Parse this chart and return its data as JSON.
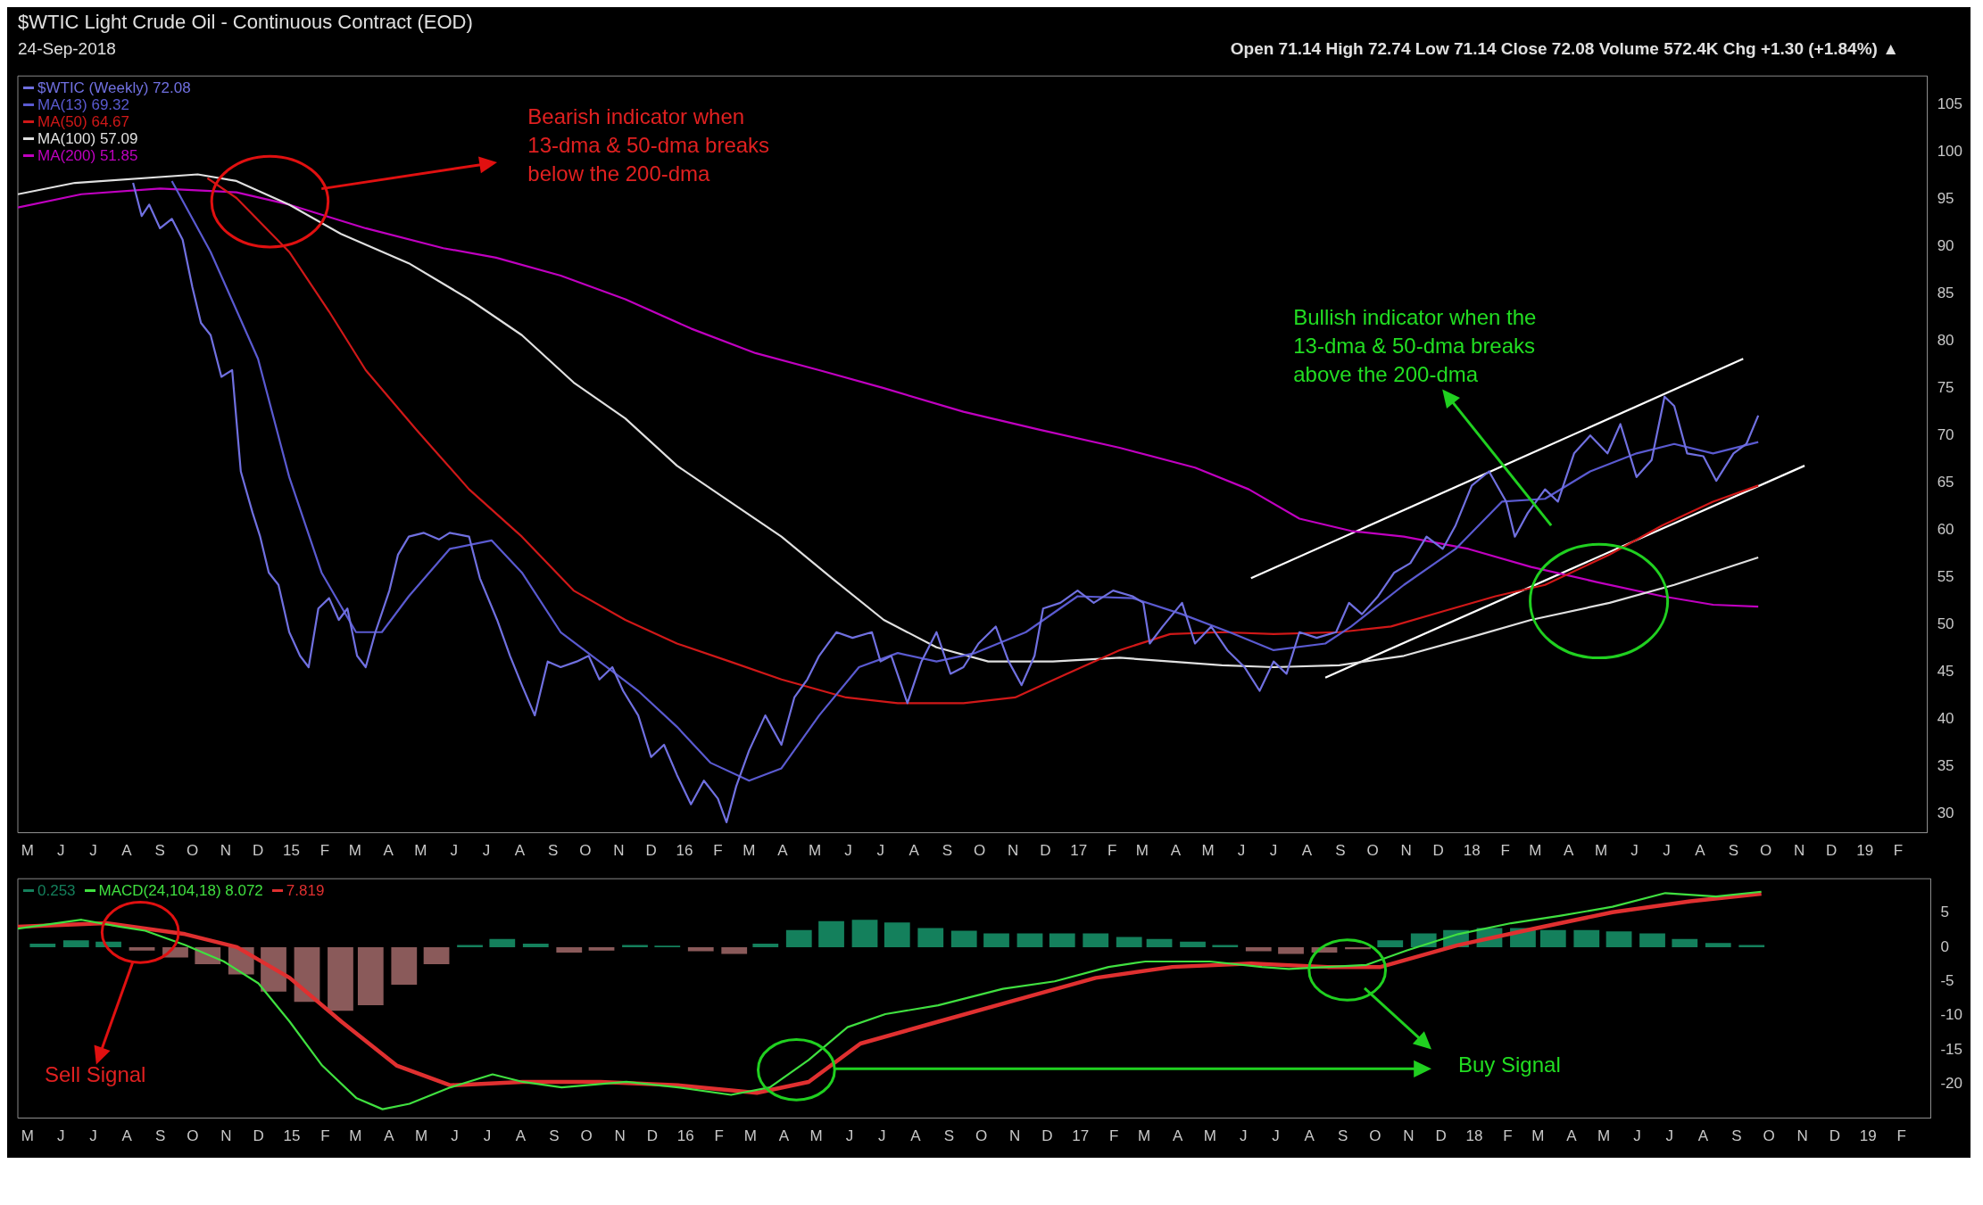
{
  "chart_data": [
    {
      "type": "line",
      "title": "$WTIC Light Crude Oil - Continuous Contract (EOD)",
      "subtitle": "24-Sep-2018",
      "annotations": [
        "Open 71.14 High 72.74 Low 71.14 Close 72.08 Volume 572.4K Chg +1.30 (+1.84%) ▲",
        "Bearish indicator when 13-dma & 50-dma breaks below the 200-dma",
        "Bullish indicator when the 13-dma & 50-dma breaks above the 200-dma"
      ],
      "xlim": [
        "2014-04-22",
        "2019-02-28"
      ],
      "xticks": [
        {
          "value": "2014-05-01",
          "label": "M"
        },
        {
          "value": "2014-06-01",
          "label": "J"
        },
        {
          "value": "2014-07-01",
          "label": "J"
        },
        {
          "value": "2014-08-01",
          "label": "A"
        },
        {
          "value": "2014-09-01",
          "label": "S"
        },
        {
          "value": "2014-10-01",
          "label": "O"
        },
        {
          "value": "2014-11-01",
          "label": "N"
        },
        {
          "value": "2014-12-01",
          "label": "D"
        },
        {
          "value": "2015-01-01",
          "label": "15"
        },
        {
          "value": "2015-02-01",
          "label": "F"
        },
        {
          "value": "2015-03-01",
          "label": "M"
        },
        {
          "value": "2015-04-01",
          "label": "A"
        },
        {
          "value": "2015-05-01",
          "label": "M"
        },
        {
          "value": "2015-06-01",
          "label": "J"
        },
        {
          "value": "2015-07-01",
          "label": "J"
        },
        {
          "value": "2015-08-01",
          "label": "A"
        },
        {
          "value": "2015-09-01",
          "label": "S"
        },
        {
          "value": "2015-10-01",
          "label": "O"
        },
        {
          "value": "2015-11-01",
          "label": "N"
        },
        {
          "value": "2015-12-01",
          "label": "D"
        },
        {
          "value": "2016-01-01",
          "label": "16"
        },
        {
          "value": "2016-02-01",
          "label": "F"
        },
        {
          "value": "2016-03-01",
          "label": "M"
        },
        {
          "value": "2016-04-01",
          "label": "A"
        },
        {
          "value": "2016-05-01",
          "label": "M"
        },
        {
          "value": "2016-06-01",
          "label": "J"
        },
        {
          "value": "2016-07-01",
          "label": "J"
        },
        {
          "value": "2016-08-01",
          "label": "A"
        },
        {
          "value": "2016-09-01",
          "label": "S"
        },
        {
          "value": "2016-10-01",
          "label": "O"
        },
        {
          "value": "2016-11-01",
          "label": "N"
        },
        {
          "value": "2016-12-01",
          "label": "D"
        },
        {
          "value": "2017-01-01",
          "label": "17"
        },
        {
          "value": "2017-02-01",
          "label": "F"
        },
        {
          "value": "2017-03-01",
          "label": "M"
        },
        {
          "value": "2017-04-01",
          "label": "A"
        },
        {
          "value": "2017-05-01",
          "label": "M"
        },
        {
          "value": "2017-06-01",
          "label": "J"
        },
        {
          "value": "2017-07-01",
          "label": "J"
        },
        {
          "value": "2017-08-01",
          "label": "A"
        },
        {
          "value": "2017-09-01",
          "label": "S"
        },
        {
          "value": "2017-10-01",
          "label": "O"
        },
        {
          "value": "2017-11-01",
          "label": "N"
        },
        {
          "value": "2017-12-01",
          "label": "D"
        },
        {
          "value": "2018-01-01",
          "label": "18"
        },
        {
          "value": "2018-02-01",
          "label": "F"
        },
        {
          "value": "2018-03-01",
          "label": "M"
        },
        {
          "value": "2018-04-01",
          "label": "A"
        },
        {
          "value": "2018-05-01",
          "label": "M"
        },
        {
          "value": "2018-06-01",
          "label": "J"
        },
        {
          "value": "2018-07-01",
          "label": "J"
        },
        {
          "value": "2018-08-01",
          "label": "A"
        },
        {
          "value": "2018-09-01",
          "label": "S"
        },
        {
          "value": "2018-10-01",
          "label": "O"
        },
        {
          "value": "2018-11-01",
          "label": "N"
        },
        {
          "value": "2018-12-01",
          "label": "D"
        },
        {
          "value": "2019-01-01",
          "label": "19"
        },
        {
          "value": "2019-02-01",
          "label": "F"
        }
      ],
      "ylim": [
        28,
        108
      ],
      "yticks": [
        30,
        35,
        40,
        45,
        50,
        55,
        60,
        65,
        70,
        75,
        80,
        85,
        90,
        95,
        100,
        105
      ],
      "legend": "top left",
      "series": [
        {
          "name": "$WTIC (Weekly) 72.08",
          "color": "#7070e0",
          "x": [
            "2014-08-07",
            "2014-08-15",
            "2014-08-22",
            "2014-09-01",
            "2014-09-12",
            "2014-09-22",
            "2014-10-01",
            "2014-10-09",
            "2014-10-18",
            "2014-10-28",
            "2014-11-07",
            "2014-11-15",
            "2014-11-26",
            "2014-12-03",
            "2014-12-11",
            "2014-12-20",
            "2014-12-30",
            "2015-01-09",
            "2015-01-17",
            "2015-01-26",
            "2015-02-05",
            "2015-02-14",
            "2015-02-22",
            "2015-03-03",
            "2015-03-11",
            "2015-03-20",
            "2015-04-02",
            "2015-04-10",
            "2015-04-20",
            "2015-05-04",
            "2015-05-18",
            "2015-05-28",
            "2015-06-15",
            "2015-06-25",
            "2015-07-11",
            "2015-07-23",
            "2015-08-03",
            "2015-08-15",
            "2015-08-27",
            "2015-09-08",
            "2015-09-23",
            "2015-10-04",
            "2015-10-14",
            "2015-10-26",
            "2015-11-05",
            "2015-11-19",
            "2015-12-01",
            "2015-12-13",
            "2015-12-25",
            "2016-01-07",
            "2016-01-19",
            "2016-02-01",
            "2016-02-09",
            "2016-02-18",
            "2016-03-01",
            "2016-03-16",
            "2016-03-31",
            "2016-04-12",
            "2016-04-24",
            "2016-05-05",
            "2016-05-21",
            "2016-06-05",
            "2016-06-23",
            "2016-07-01",
            "2016-07-11",
            "2016-07-26",
            "2016-08-08",
            "2016-08-22",
            "2016-09-04",
            "2016-09-16",
            "2016-09-30",
            "2016-10-16",
            "2016-10-28",
            "2016-11-09",
            "2016-11-21",
            "2016-11-29",
            "2016-12-15",
            "2016-12-31",
            "2017-01-15",
            "2017-02-02",
            "2017-02-20",
            "2017-03-02",
            "2017-03-08",
            "2017-03-20",
            "2017-04-07",
            "2017-04-19",
            "2017-05-04",
            "2017-05-19",
            "2017-06-04",
            "2017-06-18",
            "2017-07-01",
            "2017-07-13",
            "2017-07-25",
            "2017-08-10",
            "2017-08-28",
            "2017-09-09",
            "2017-09-21",
            "2017-10-06",
            "2017-10-21",
            "2017-11-05",
            "2017-11-20",
            "2017-12-05",
            "2017-12-17",
            "2018-01-01",
            "2018-01-17",
            "2018-02-02",
            "2018-02-10",
            "2018-02-22",
            "2018-03-10",
            "2018-03-22",
            "2018-04-06",
            "2018-04-21",
            "2018-05-07",
            "2018-05-19",
            "2018-06-03",
            "2018-06-17",
            "2018-06-29",
            "2018-07-08",
            "2018-07-20",
            "2018-08-04",
            "2018-08-16",
            "2018-09-01",
            "2018-09-13",
            "2018-09-24"
          ],
          "values": [
            96.7,
            93.2,
            94.4,
            91.9,
            92.9,
            90.7,
            85.7,
            81.9,
            80.6,
            76.2,
            76.9,
            66.2,
            61.8,
            59.3,
            55.5,
            54.2,
            49.2,
            46.7,
            45.5,
            51.7,
            52.8,
            50.5,
            51.7,
            46.7,
            45.5,
            49.2,
            53.6,
            57.4,
            59.3,
            59.7,
            59.0,
            59.7,
            59.3,
            54.9,
            50.5,
            46.7,
            43.6,
            40.4,
            46.1,
            45.5,
            46.1,
            46.7,
            44.2,
            45.5,
            43.0,
            40.4,
            36.0,
            37.3,
            34.1,
            31.0,
            33.5,
            31.6,
            29.1,
            32.9,
            36.7,
            40.4,
            37.3,
            42.3,
            44.2,
            46.7,
            49.2,
            48.6,
            49.2,
            46.1,
            46.7,
            41.7,
            46.1,
            49.2,
            44.8,
            45.5,
            48.0,
            49.8,
            46.1,
            43.6,
            46.7,
            51.7,
            52.3,
            53.6,
            52.3,
            53.6,
            53.0,
            52.3,
            48.0,
            49.8,
            52.3,
            48.0,
            49.8,
            47.3,
            45.5,
            43.0,
            46.1,
            44.8,
            49.2,
            48.6,
            49.2,
            52.3,
            51.1,
            53.0,
            55.5,
            56.5,
            59.3,
            58.0,
            60.5,
            64.7,
            66.2,
            63.0,
            59.3,
            61.8,
            64.3,
            63.0,
            68.1,
            70.0,
            68.1,
            71.2,
            65.6,
            67.4,
            74.1,
            73.1,
            68.1,
            67.8,
            65.2,
            68.1,
            69.1,
            72.1
          ]
        },
        {
          "name": "MA(13) 69.32",
          "color": "#5a5ad0",
          "x": [
            "2014-09-12",
            "2014-10-18",
            "2014-12-01",
            "2014-12-30",
            "2015-01-29",
            "2015-03-02",
            "2015-03-26",
            "2015-04-20",
            "2015-05-28",
            "2015-07-06",
            "2015-08-03",
            "2015-09-08",
            "2015-10-14",
            "2015-11-19",
            "2015-12-25",
            "2016-01-25",
            "2016-03-01",
            "2016-03-31",
            "2016-05-05",
            "2016-06-11",
            "2016-07-17",
            "2016-08-22",
            "2016-09-27",
            "2016-11-13",
            "2016-12-31",
            "2017-02-20",
            "2017-04-07",
            "2017-05-21",
            "2017-07-01",
            "2017-08-18",
            "2017-09-11",
            "2017-10-30",
            "2017-12-17",
            "2018-01-29",
            "2018-03-10",
            "2018-04-21",
            "2018-06-03",
            "2018-07-08",
            "2018-08-13",
            "2018-09-24"
          ],
          "values": [
            96.9,
            89.4,
            78.1,
            65.6,
            55.5,
            49.2,
            49.2,
            53.0,
            58.0,
            58.9,
            55.5,
            49.2,
            46.1,
            43.0,
            39.2,
            35.4,
            33.5,
            34.8,
            40.4,
            45.5,
            47.0,
            46.1,
            47.0,
            49.2,
            53.0,
            52.8,
            51.1,
            49.2,
            47.3,
            48.0,
            49.8,
            54.2,
            58.0,
            63.0,
            63.3,
            66.2,
            68.1,
            69.1,
            68.1,
            69.3
          ]
        },
        {
          "name": "MA(50) 64.67",
          "color": "#d01818",
          "x": [
            "2014-10-15",
            "2014-11-11",
            "2014-12-30",
            "2015-02-05",
            "2015-03-11",
            "2015-04-27",
            "2015-06-15",
            "2015-08-03",
            "2015-09-20",
            "2015-11-07",
            "2015-12-25",
            "2016-02-12",
            "2016-03-31",
            "2016-05-30",
            "2016-07-17",
            "2016-09-16",
            "2016-11-03",
            "2016-12-21",
            "2017-02-08",
            "2017-03-27",
            "2017-05-14",
            "2017-07-01",
            "2017-08-31",
            "2017-10-18",
            "2017-12-05",
            "2018-01-23",
            "2018-03-10",
            "2018-05-09",
            "2018-06-27",
            "2018-08-13",
            "2018-09-24"
          ],
          "values": [
            97.2,
            95.1,
            89.4,
            83.1,
            76.9,
            70.6,
            64.3,
            59.3,
            53.6,
            50.5,
            48.0,
            46.1,
            44.2,
            42.3,
            41.7,
            41.7,
            42.3,
            44.8,
            47.3,
            49.0,
            49.2,
            49.0,
            49.2,
            49.8,
            51.4,
            53.0,
            54.2,
            57.4,
            60.5,
            63.0,
            64.7
          ]
        },
        {
          "name": "MA(100) 57.09",
          "color": "#e0e0e0",
          "x": [
            "2014-04-22",
            "2014-06-14",
            "2014-10-06",
            "2014-11-11",
            "2014-12-30",
            "2015-02-16",
            "2015-04-20",
            "2015-06-15",
            "2015-08-03",
            "2015-09-20",
            "2015-11-07",
            "2015-12-25",
            "2016-02-12",
            "2016-03-31",
            "2016-05-17",
            "2016-07-04",
            "2016-08-22",
            "2016-10-09",
            "2016-12-08",
            "2017-02-08",
            "2017-03-27",
            "2017-05-14",
            "2017-07-01",
            "2017-08-31",
            "2017-10-30",
            "2017-12-29",
            "2018-02-25",
            "2018-05-09",
            "2018-07-08",
            "2018-09-24"
          ],
          "values": [
            95.5,
            96.7,
            97.6,
            96.9,
            94.4,
            91.3,
            88.2,
            84.4,
            80.6,
            75.6,
            71.8,
            66.8,
            63.0,
            59.3,
            54.9,
            50.5,
            47.6,
            46.1,
            46.1,
            46.5,
            46.1,
            45.7,
            45.5,
            45.7,
            46.7,
            48.6,
            50.5,
            52.3,
            54.2,
            57.1
          ]
        },
        {
          "name": "MA(200) 51.85",
          "color": "#c000c0",
          "x": [
            "2014-04-22",
            "2014-06-20",
            "2014-09-01",
            "2014-11-11",
            "2014-12-30",
            "2015-03-11",
            "2015-05-22",
            "2015-07-10",
            "2015-09-08",
            "2015-11-07",
            "2016-01-07",
            "2016-03-07",
            "2016-05-05",
            "2016-07-04",
            "2016-09-16",
            "2016-11-26",
            "2017-02-08",
            "2017-04-19",
            "2017-06-08",
            "2017-07-25",
            "2017-09-11",
            "2017-10-30",
            "2017-12-29",
            "2018-02-25",
            "2018-04-27",
            "2018-06-27",
            "2018-08-13",
            "2018-09-24"
          ],
          "values": [
            94.1,
            95.5,
            96.1,
            95.7,
            94.4,
            91.9,
            89.8,
            88.8,
            86.9,
            84.4,
            81.3,
            78.7,
            76.9,
            75.0,
            72.5,
            70.6,
            68.7,
            66.6,
            64.3,
            61.2,
            59.9,
            59.3,
            58.0,
            56.1,
            54.5,
            53.0,
            52.1,
            51.9
          ]
        },
        {
          "color": "#ffffff",
          "x": [
            "2017-06-10",
            "2018-09-10"
          ],
          "values": [
            54.9,
            78.1
          ]
        },
        {
          "color": "#ffffff",
          "x": [
            "2017-08-18",
            "2018-11-06"
          ],
          "values": [
            44.4,
            66.8
          ]
        }
      ]
    },
    {
      "type": "line",
      "annotations": [
        "Sell Signal",
        "Buy Signal"
      ],
      "xlim": [
        "2014-04-22",
        "2019-02-28"
      ],
      "xticks": [
        {
          "value": "2014-05-01",
          "label": "M"
        },
        {
          "value": "2014-06-01",
          "label": "J"
        },
        {
          "value": "2014-07-01",
          "label": "J"
        },
        {
          "value": "2014-08-01",
          "label": "A"
        },
        {
          "value": "2014-09-01",
          "label": "S"
        },
        {
          "value": "2014-10-01",
          "label": "O"
        },
        {
          "value": "2014-11-01",
          "label": "N"
        },
        {
          "value": "2014-12-01",
          "label": "D"
        },
        {
          "value": "2015-01-01",
          "label": "15"
        },
        {
          "value": "2015-02-01",
          "label": "F"
        },
        {
          "value": "2015-03-01",
          "label": "M"
        },
        {
          "value": "2015-04-01",
          "label": "A"
        },
        {
          "value": "2015-05-01",
          "label": "M"
        },
        {
          "value": "2015-06-01",
          "label": "J"
        },
        {
          "value": "2015-07-01",
          "label": "J"
        },
        {
          "value": "2015-08-01",
          "label": "A"
        },
        {
          "value": "2015-09-01",
          "label": "S"
        },
        {
          "value": "2015-10-01",
          "label": "O"
        },
        {
          "value": "2015-11-01",
          "label": "N"
        },
        {
          "value": "2015-12-01",
          "label": "D"
        },
        {
          "value": "2016-01-01",
          "label": "16"
        },
        {
          "value": "2016-02-01",
          "label": "F"
        },
        {
          "value": "2016-03-01",
          "label": "M"
        },
        {
          "value": "2016-04-01",
          "label": "A"
        },
        {
          "value": "2016-05-01",
          "label": "M"
        },
        {
          "value": "2016-06-01",
          "label": "J"
        },
        {
          "value": "2016-07-01",
          "label": "J"
        },
        {
          "value": "2016-08-01",
          "label": "A"
        },
        {
          "value": "2016-09-01",
          "label": "S"
        },
        {
          "value": "2016-10-01",
          "label": "O"
        },
        {
          "value": "2016-11-01",
          "label": "N"
        },
        {
          "value": "2016-12-01",
          "label": "D"
        },
        {
          "value": "2017-01-01",
          "label": "17"
        },
        {
          "value": "2017-02-01",
          "label": "F"
        },
        {
          "value": "2017-03-01",
          "label": "M"
        },
        {
          "value": "2017-04-01",
          "label": "A"
        },
        {
          "value": "2017-05-01",
          "label": "M"
        },
        {
          "value": "2017-06-01",
          "label": "J"
        },
        {
          "value": "2017-07-01",
          "label": "J"
        },
        {
          "value": "2017-08-01",
          "label": "A"
        },
        {
          "value": "2017-09-01",
          "label": "S"
        },
        {
          "value": "2017-10-01",
          "label": "O"
        },
        {
          "value": "2017-11-01",
          "label": "N"
        },
        {
          "value": "2017-12-01",
          "label": "D"
        },
        {
          "value": "2018-01-01",
          "label": "18"
        },
        {
          "value": "2018-02-01",
          "label": "F"
        },
        {
          "value": "2018-03-01",
          "label": "M"
        },
        {
          "value": "2018-04-01",
          "label": "A"
        },
        {
          "value": "2018-05-01",
          "label": "M"
        },
        {
          "value": "2018-06-01",
          "label": "J"
        },
        {
          "value": "2018-07-01",
          "label": "J"
        },
        {
          "value": "2018-08-01",
          "label": "A"
        },
        {
          "value": "2018-09-01",
          "label": "S"
        },
        {
          "value": "2018-10-01",
          "label": "O"
        },
        {
          "value": "2018-11-01",
          "label": "N"
        },
        {
          "value": "2018-12-01",
          "label": "D"
        },
        {
          "value": "2019-01-01",
          "label": "19"
        },
        {
          "value": "2019-02-01",
          "label": "F"
        }
      ],
      "ylim": [
        -25,
        10
      ],
      "yticks": [
        -20,
        -15,
        -10,
        -5,
        0,
        5
      ],
      "legend": "top left",
      "series": [
        {
          "name": "0.253",
          "type": "bar",
          "color": "#14805c",
          "x": [
            "2014-05-15",
            "2014-06-15",
            "2014-07-15",
            "2014-08-15",
            "2014-09-15",
            "2014-10-15",
            "2014-11-15",
            "2014-12-15",
            "2015-01-15",
            "2015-02-15",
            "2015-03-15",
            "2015-04-15",
            "2015-05-15",
            "2015-06-15",
            "2015-07-15",
            "2015-08-15",
            "2015-09-15",
            "2015-10-15",
            "2015-11-15",
            "2015-12-15",
            "2016-01-15",
            "2016-02-15",
            "2016-03-15",
            "2016-04-15",
            "2016-05-15",
            "2016-06-15",
            "2016-07-15",
            "2016-08-15",
            "2016-09-15",
            "2016-10-15",
            "2016-11-15",
            "2016-12-15",
            "2017-01-15",
            "2017-02-15",
            "2017-03-15",
            "2017-04-15",
            "2017-05-15",
            "2017-06-15",
            "2017-07-15",
            "2017-08-15",
            "2017-09-15",
            "2017-10-15",
            "2017-11-15",
            "2017-12-15",
            "2018-01-15",
            "2018-02-15",
            "2018-03-15",
            "2018-04-15",
            "2018-05-15",
            "2018-06-15",
            "2018-07-15",
            "2018-08-15",
            "2018-09-15"
          ],
          "values": [
            0.5,
            1.0,
            0.8,
            -0.5,
            -1.5,
            -2.5,
            -4.0,
            -6.5,
            -8.0,
            -9.3,
            -8.5,
            -5.5,
            -2.5,
            0.3,
            1.2,
            0.5,
            -0.8,
            -0.5,
            0.3,
            0.2,
            -0.6,
            -1.0,
            0.5,
            2.5,
            3.8,
            4.0,
            3.6,
            2.8,
            2.4,
            2.0,
            2.0,
            2.0,
            2.0,
            1.5,
            1.2,
            0.8,
            0.3,
            -0.6,
            -1.0,
            -0.8,
            -0.3,
            1.0,
            2.0,
            2.5,
            2.8,
            2.8,
            2.5,
            2.5,
            2.3,
            2.0,
            1.2,
            0.6,
            0.3
          ],
          "colors": [
            "#14805c",
            "#14805c",
            "#14805c",
            "#8a5a5a",
            "#8a5a5a",
            "#8a5a5a",
            "#8a5a5a",
            "#8a5a5a",
            "#8a5a5a",
            "#8a5a5a",
            "#8a5a5a",
            "#8a5a5a",
            "#8a5a5a",
            "#14805c",
            "#14805c",
            "#14805c",
            "#8a5a5a",
            "#8a5a5a",
            "#14805c",
            "#14805c",
            "#8a5a5a",
            "#8a5a5a",
            "#14805c",
            "#14805c",
            "#14805c",
            "#14805c",
            "#14805c",
            "#14805c",
            "#14805c",
            "#14805c",
            "#14805c",
            "#14805c",
            "#14805c",
            "#14805c",
            "#14805c",
            "#14805c",
            "#14805c",
            "#8a5a5a",
            "#8a5a5a",
            "#8a5a5a",
            "#8a5a5a",
            "#14805c",
            "#14805c",
            "#14805c",
            "#14805c",
            "#14805c",
            "#14805c",
            "#14805c",
            "#14805c",
            "#14805c",
            "#14805c",
            "#14805c",
            "#14805c"
          ]
        },
        {
          "name": "MACD(24,104,18) 8.072",
          "color": "#40e040",
          "x": [
            "2014-04-22",
            "2014-06-20",
            "2014-07-25",
            "2014-08-18",
            "2014-09-24",
            "2014-10-30",
            "2014-12-01",
            "2014-12-30",
            "2015-01-29",
            "2015-03-02",
            "2015-03-26",
            "2015-04-20",
            "2015-05-28",
            "2015-07-06",
            "2015-08-03",
            "2015-09-08",
            "2015-11-07",
            "2015-12-25",
            "2016-02-12",
            "2016-03-19",
            "2016-04-24",
            "2016-05-30",
            "2016-07-04",
            "2016-08-22",
            "2016-10-21",
            "2016-12-08",
            "2017-01-27",
            "2017-03-02",
            "2017-05-01",
            "2017-06-18",
            "2017-07-13",
            "2017-08-18",
            "2017-09-23",
            "2017-10-30",
            "2017-12-17",
            "2018-02-04",
            "2018-03-22",
            "2018-05-09",
            "2018-06-27",
            "2018-08-13",
            "2018-09-24"
          ],
          "values": [
            2.7,
            4.0,
            3.0,
            2.4,
            0.3,
            -2.1,
            -5.3,
            -10.9,
            -17.3,
            -22.1,
            -23.7,
            -22.9,
            -20.5,
            -18.6,
            -19.7,
            -20.5,
            -19.7,
            -20.5,
            -21.6,
            -20.5,
            -16.5,
            -11.7,
            -9.8,
            -8.5,
            -6.1,
            -5.0,
            -2.9,
            -2.1,
            -2.1,
            -2.9,
            -3.2,
            -2.9,
            -2.6,
            -0.5,
            1.9,
            3.5,
            4.6,
            5.9,
            7.9,
            7.4,
            8.1
          ]
        },
        {
          "name": "7.819",
          "color": "#e03030",
          "x": [
            "2014-04-22",
            "2014-07-13",
            "2014-09-24",
            "2014-11-11",
            "2014-12-30",
            "2015-02-16",
            "2015-04-08",
            "2015-05-28",
            "2015-08-03",
            "2015-10-14",
            "2015-12-25",
            "2016-03-07",
            "2016-04-24",
            "2016-06-11",
            "2016-08-22",
            "2016-11-03",
            "2017-01-15",
            "2017-03-27",
            "2017-06-08",
            "2017-08-18",
            "2017-10-06",
            "2017-12-17",
            "2018-02-25",
            "2018-05-09",
            "2018-07-20",
            "2018-09-24"
          ],
          "values": [
            3.0,
            3.5,
            1.9,
            0,
            -4.5,
            -10.9,
            -17.3,
            -20.2,
            -19.7,
            -19.7,
            -20.2,
            -21.3,
            -19.7,
            -14.1,
            -10.9,
            -7.7,
            -4.5,
            -2.9,
            -2.4,
            -2.9,
            -2.9,
            0.3,
            2.7,
            5.1,
            6.7,
            7.8
          ]
        }
      ]
    }
  ]
}
